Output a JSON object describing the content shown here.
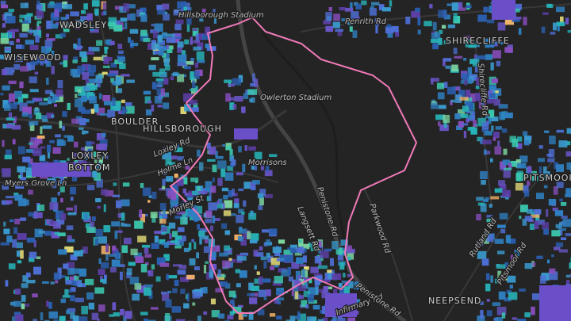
{
  "map": {
    "labels": [
      "Hillsborough Stadium",
      "Penrith Rd",
      "WADSLEY",
      "WISEWOOD",
      "SHIRECLIFFE",
      "Owlerton Stadium",
      "Shirecliffe Rd",
      "BOULDER",
      "HILLSBOROUGH",
      "LOXLEY",
      "BOTTOM",
      "Holme Ln",
      "Loxley Rd",
      "Morrisons",
      "Myers Grove Ln",
      "Penistone Rd",
      "Parkwood Rd",
      "Langsett Rd",
      "Morley St",
      "Rutland Rd",
      "Pitsmoor Rd",
      "PITSMOOR",
      "NEEPSEND",
      "Infirmary Rd",
      "Penistone Rd"
    ]
  }
}
